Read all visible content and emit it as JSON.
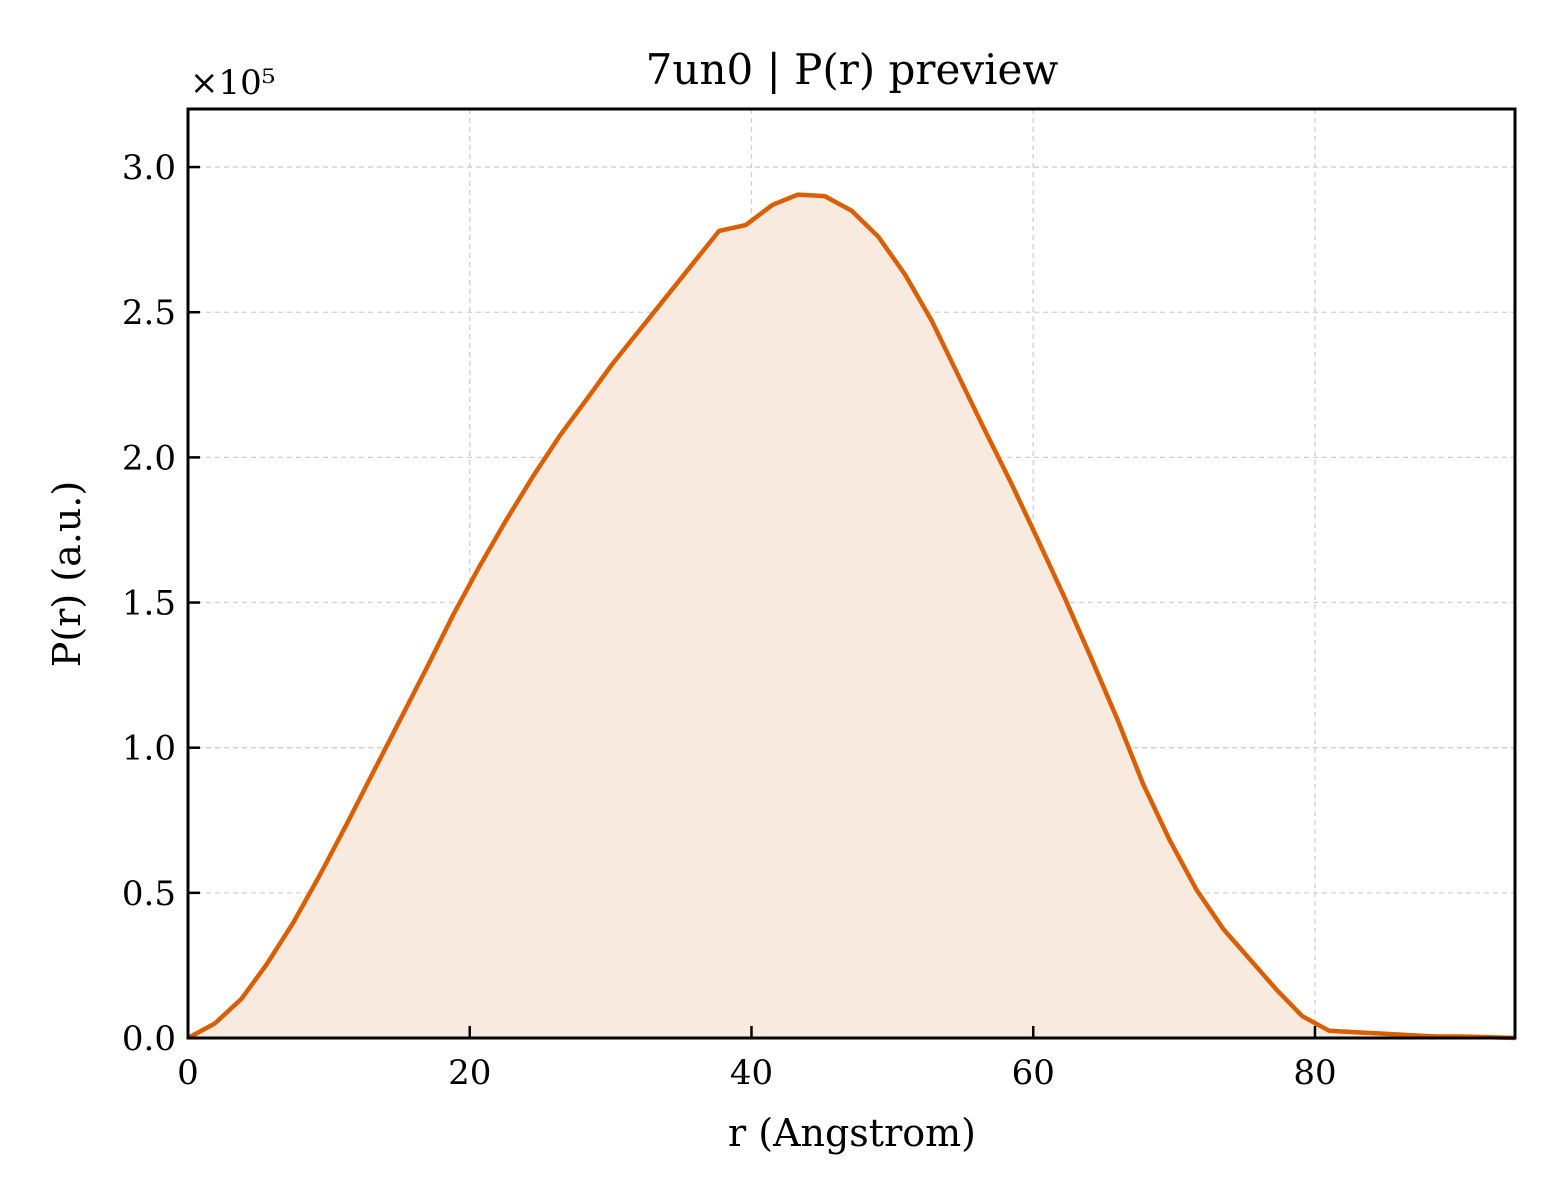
{
  "chart_data": {
    "type": "area",
    "title": "7un0 | P(r) preview",
    "xlabel": "r (Angstrom)",
    "ylabel": "P(r) (a.u.)",
    "y_multiplier_label": "×10⁵",
    "xlim": [
      0,
      94.2
    ],
    "ylim": [
      0,
      3.2
    ],
    "xticks": [
      0,
      20,
      40,
      60,
      80
    ],
    "xtick_labels": [
      "0",
      "20",
      "40",
      "60",
      "80"
    ],
    "yticks": [
      0,
      0.5,
      1.0,
      1.5,
      2.0,
      2.5,
      3.0
    ],
    "ytick_labels": [
      "0.0",
      "0.5",
      "1.0",
      "1.5",
      "2.0",
      "2.5",
      "3.0"
    ],
    "grid": true,
    "series": [
      {
        "color": "#d95f02",
        "fill_color": "#f8eadf",
        "x": [
          0,
          1.9,
          3.8,
          5.6,
          7.5,
          9.4,
          11.3,
          13.2,
          15.1,
          17.0,
          18.8,
          20.7,
          22.6,
          24.5,
          26.4,
          28.3,
          30.1,
          32.0,
          33.9,
          35.8,
          37.7,
          39.6,
          41.5,
          43.3,
          45.2,
          47.1,
          49.0,
          50.9,
          52.8,
          54.6,
          56.5,
          58.4,
          60.3,
          62.2,
          64.1,
          66.0,
          67.8,
          69.7,
          71.6,
          73.5,
          75.4,
          77.3,
          79.1,
          81.0,
          82.9,
          84.8,
          86.7,
          88.6,
          90.4,
          92.3,
          94.2
        ],
        "values": [
          0.0,
          0.05,
          0.135,
          0.255,
          0.4,
          0.565,
          0.74,
          0.92,
          1.1,
          1.28,
          1.455,
          1.625,
          1.785,
          1.935,
          2.075,
          2.2,
          2.32,
          2.435,
          2.55,
          2.665,
          2.78,
          2.8,
          2.87,
          2.905,
          2.9,
          2.85,
          2.76,
          2.63,
          2.47,
          2.29,
          2.1,
          1.915,
          1.72,
          1.52,
          1.31,
          1.095,
          0.875,
          0.68,
          0.51,
          0.375,
          0.27,
          0.165,
          0.075,
          0.025,
          0.02,
          0.015,
          0.01,
          0.005,
          0.005,
          0.003,
          0.0
        ]
      }
    ]
  }
}
